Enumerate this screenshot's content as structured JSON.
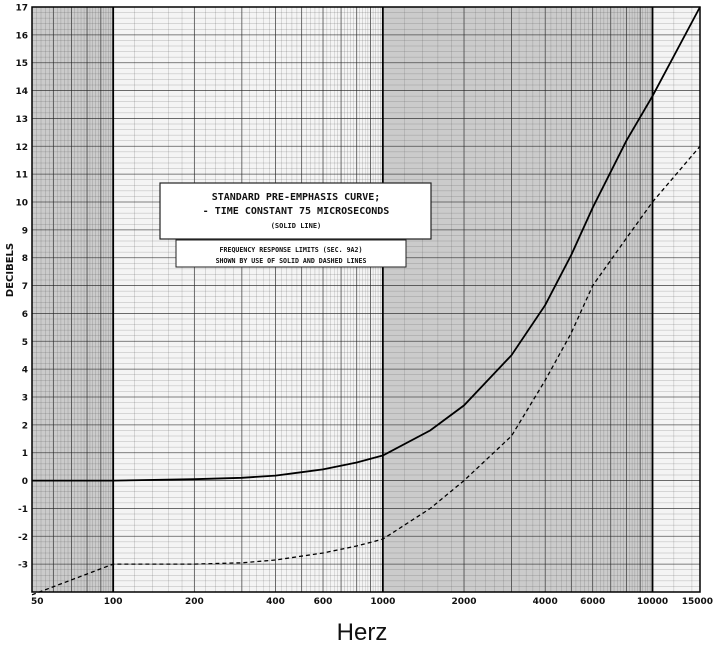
{
  "chart_data": {
    "type": "line",
    "title": "STANDARD PRE-EMPHASIS CURVE; - TIME CONSTANT 75 MICROSECONDS",
    "title_note": "(SOLID LINE)",
    "subtitle_lines": [
      "FREQUENCY RESPONSE LIMITS  (SEC. 9A2)",
      "SHOWN BY USE OF SOLID AND DASHED LINES"
    ],
    "xlabel": "Herz",
    "ylabel": "DECIBELS",
    "x_scale": "log",
    "xlim": [
      50,
      15000
    ],
    "ylim": [
      -4,
      17
    ],
    "xticks": [
      50,
      100,
      200,
      400,
      600,
      1000,
      2000,
      4000,
      6000,
      10000,
      15000
    ],
    "xtick_labels": [
      "50",
      "100",
      "200",
      "400",
      "600",
      "1000",
      "2000",
      "4000",
      "6000",
      "10000",
      "15000"
    ],
    "yticks": [
      -3,
      -2,
      -1,
      0,
      1,
      2,
      3,
      4,
      5,
      6,
      7,
      8,
      9,
      10,
      11,
      12,
      13,
      14,
      15,
      16,
      17
    ],
    "ytick_labels": [
      "-3",
      "-2",
      "-1",
      "0",
      "1",
      "2",
      "3",
      "4",
      "5",
      "6",
      "7",
      "8",
      "9",
      "10",
      "11",
      "12",
      "13",
      "14",
      "15",
      "16",
      "17"
    ],
    "grid": true,
    "series": [
      {
        "style": "solid",
        "x": [
          50,
          100,
          200,
          300,
          400,
          500,
          600,
          800,
          1000,
          1500,
          2000,
          3000,
          4000,
          5000,
          6000,
          8000,
          10000,
          15000
        ],
        "y": [
          0.0,
          0.0,
          0.05,
          0.1,
          0.18,
          0.3,
          0.4,
          0.65,
          0.9,
          1.8,
          2.7,
          4.5,
          6.3,
          8.1,
          9.8,
          12.2,
          13.8,
          17.0
        ]
      },
      {
        "style": "dashed",
        "x": [
          50,
          100,
          200,
          300,
          400,
          600,
          800,
          1000,
          1500,
          2000,
          3000,
          4000,
          5000,
          6000,
          8000,
          10000,
          15000
        ],
        "y": [
          -4.1,
          -3.0,
          -3.0,
          -2.95,
          -2.85,
          -2.6,
          -2.35,
          -2.1,
          -1.0,
          0.0,
          1.6,
          3.6,
          5.3,
          7.0,
          8.7,
          10.0,
          12.0
        ]
      }
    ]
  }
}
